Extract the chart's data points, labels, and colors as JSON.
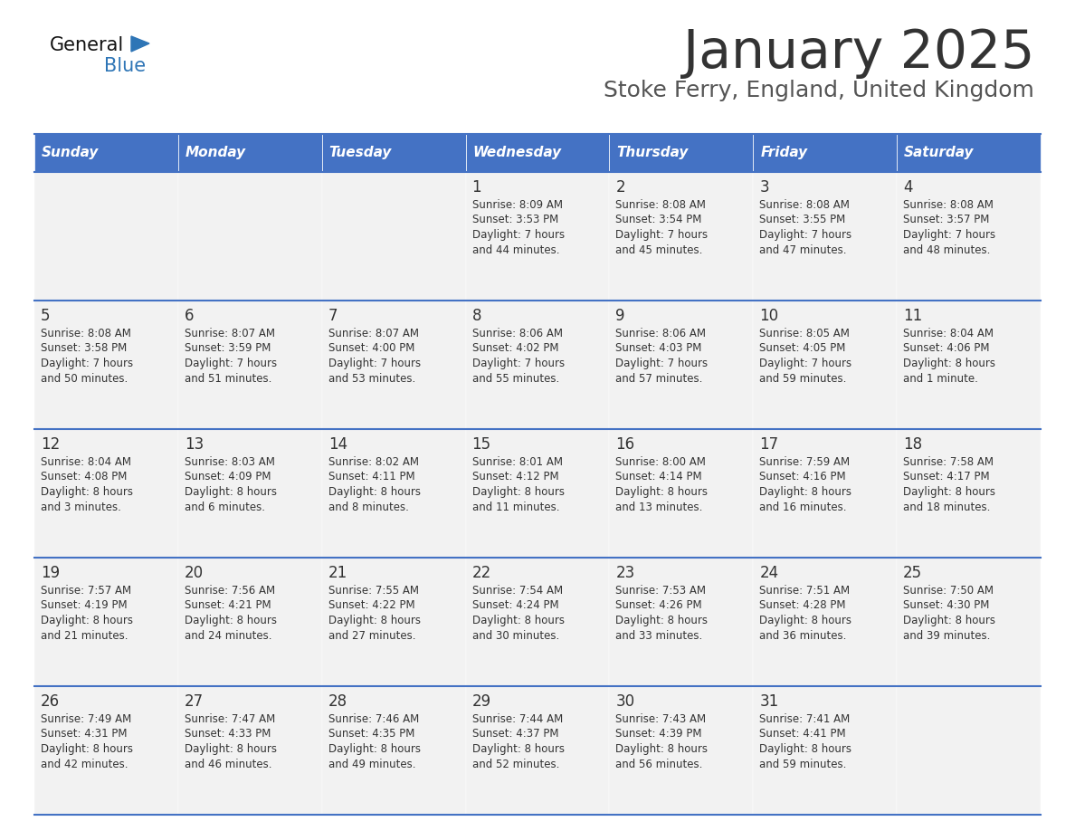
{
  "title": "January 2025",
  "subtitle": "Stoke Ferry, England, United Kingdom",
  "days_of_week": [
    "Sunday",
    "Monday",
    "Tuesday",
    "Wednesday",
    "Thursday",
    "Friday",
    "Saturday"
  ],
  "header_bg": "#4472C4",
  "header_text": "#FFFFFF",
  "cell_bg": "#F2F2F2",
  "border_color": "#4472C4",
  "sep_color": "#4472C4",
  "day_num_color": "#333333",
  "cell_text_color": "#333333",
  "title_color": "#333333",
  "subtitle_color": "#555555",
  "logo_general_color": "#111111",
  "logo_blue_color": "#2E75B6",
  "weeks": [
    {
      "days": [
        {
          "date": null,
          "sunrise": null,
          "sunset": null,
          "daylight_h": null,
          "daylight_m": null
        },
        {
          "date": null,
          "sunrise": null,
          "sunset": null,
          "daylight_h": null,
          "daylight_m": null
        },
        {
          "date": null,
          "sunrise": null,
          "sunset": null,
          "daylight_h": null,
          "daylight_m": null
        },
        {
          "date": 1,
          "sunrise": "8:09 AM",
          "sunset": "3:53 PM",
          "daylight_h": "7 hours",
          "daylight_m": "and 44 minutes."
        },
        {
          "date": 2,
          "sunrise": "8:08 AM",
          "sunset": "3:54 PM",
          "daylight_h": "7 hours",
          "daylight_m": "and 45 minutes."
        },
        {
          "date": 3,
          "sunrise": "8:08 AM",
          "sunset": "3:55 PM",
          "daylight_h": "7 hours",
          "daylight_m": "and 47 minutes."
        },
        {
          "date": 4,
          "sunrise": "8:08 AM",
          "sunset": "3:57 PM",
          "daylight_h": "7 hours",
          "daylight_m": "and 48 minutes."
        }
      ]
    },
    {
      "days": [
        {
          "date": 5,
          "sunrise": "8:08 AM",
          "sunset": "3:58 PM",
          "daylight_h": "7 hours",
          "daylight_m": "and 50 minutes."
        },
        {
          "date": 6,
          "sunrise": "8:07 AM",
          "sunset": "3:59 PM",
          "daylight_h": "7 hours",
          "daylight_m": "and 51 minutes."
        },
        {
          "date": 7,
          "sunrise": "8:07 AM",
          "sunset": "4:00 PM",
          "daylight_h": "7 hours",
          "daylight_m": "and 53 minutes."
        },
        {
          "date": 8,
          "sunrise": "8:06 AM",
          "sunset": "4:02 PM",
          "daylight_h": "7 hours",
          "daylight_m": "and 55 minutes."
        },
        {
          "date": 9,
          "sunrise": "8:06 AM",
          "sunset": "4:03 PM",
          "daylight_h": "7 hours",
          "daylight_m": "and 57 minutes."
        },
        {
          "date": 10,
          "sunrise": "8:05 AM",
          "sunset": "4:05 PM",
          "daylight_h": "7 hours",
          "daylight_m": "and 59 minutes."
        },
        {
          "date": 11,
          "sunrise": "8:04 AM",
          "sunset": "4:06 PM",
          "daylight_h": "8 hours",
          "daylight_m": "and 1 minute."
        }
      ]
    },
    {
      "days": [
        {
          "date": 12,
          "sunrise": "8:04 AM",
          "sunset": "4:08 PM",
          "daylight_h": "8 hours",
          "daylight_m": "and 3 minutes."
        },
        {
          "date": 13,
          "sunrise": "8:03 AM",
          "sunset": "4:09 PM",
          "daylight_h": "8 hours",
          "daylight_m": "and 6 minutes."
        },
        {
          "date": 14,
          "sunrise": "8:02 AM",
          "sunset": "4:11 PM",
          "daylight_h": "8 hours",
          "daylight_m": "and 8 minutes."
        },
        {
          "date": 15,
          "sunrise": "8:01 AM",
          "sunset": "4:12 PM",
          "daylight_h": "8 hours",
          "daylight_m": "and 11 minutes."
        },
        {
          "date": 16,
          "sunrise": "8:00 AM",
          "sunset": "4:14 PM",
          "daylight_h": "8 hours",
          "daylight_m": "and 13 minutes."
        },
        {
          "date": 17,
          "sunrise": "7:59 AM",
          "sunset": "4:16 PM",
          "daylight_h": "8 hours",
          "daylight_m": "and 16 minutes."
        },
        {
          "date": 18,
          "sunrise": "7:58 AM",
          "sunset": "4:17 PM",
          "daylight_h": "8 hours",
          "daylight_m": "and 18 minutes."
        }
      ]
    },
    {
      "days": [
        {
          "date": 19,
          "sunrise": "7:57 AM",
          "sunset": "4:19 PM",
          "daylight_h": "8 hours",
          "daylight_m": "and 21 minutes."
        },
        {
          "date": 20,
          "sunrise": "7:56 AM",
          "sunset": "4:21 PM",
          "daylight_h": "8 hours",
          "daylight_m": "and 24 minutes."
        },
        {
          "date": 21,
          "sunrise": "7:55 AM",
          "sunset": "4:22 PM",
          "daylight_h": "8 hours",
          "daylight_m": "and 27 minutes."
        },
        {
          "date": 22,
          "sunrise": "7:54 AM",
          "sunset": "4:24 PM",
          "daylight_h": "8 hours",
          "daylight_m": "and 30 minutes."
        },
        {
          "date": 23,
          "sunrise": "7:53 AM",
          "sunset": "4:26 PM",
          "daylight_h": "8 hours",
          "daylight_m": "and 33 minutes."
        },
        {
          "date": 24,
          "sunrise": "7:51 AM",
          "sunset": "4:28 PM",
          "daylight_h": "8 hours",
          "daylight_m": "and 36 minutes."
        },
        {
          "date": 25,
          "sunrise": "7:50 AM",
          "sunset": "4:30 PM",
          "daylight_h": "8 hours",
          "daylight_m": "and 39 minutes."
        }
      ]
    },
    {
      "days": [
        {
          "date": 26,
          "sunrise": "7:49 AM",
          "sunset": "4:31 PM",
          "daylight_h": "8 hours",
          "daylight_m": "and 42 minutes."
        },
        {
          "date": 27,
          "sunrise": "7:47 AM",
          "sunset": "4:33 PM",
          "daylight_h": "8 hours",
          "daylight_m": "and 46 minutes."
        },
        {
          "date": 28,
          "sunrise": "7:46 AM",
          "sunset": "4:35 PM",
          "daylight_h": "8 hours",
          "daylight_m": "and 49 minutes."
        },
        {
          "date": 29,
          "sunrise": "7:44 AM",
          "sunset": "4:37 PM",
          "daylight_h": "8 hours",
          "daylight_m": "and 52 minutes."
        },
        {
          "date": 30,
          "sunrise": "7:43 AM",
          "sunset": "4:39 PM",
          "daylight_h": "8 hours",
          "daylight_m": "and 56 minutes."
        },
        {
          "date": 31,
          "sunrise": "7:41 AM",
          "sunset": "4:41 PM",
          "daylight_h": "8 hours",
          "daylight_m": "and 59 minutes."
        },
        {
          "date": null,
          "sunrise": null,
          "sunset": null,
          "daylight_h": null,
          "daylight_m": null
        }
      ]
    }
  ]
}
